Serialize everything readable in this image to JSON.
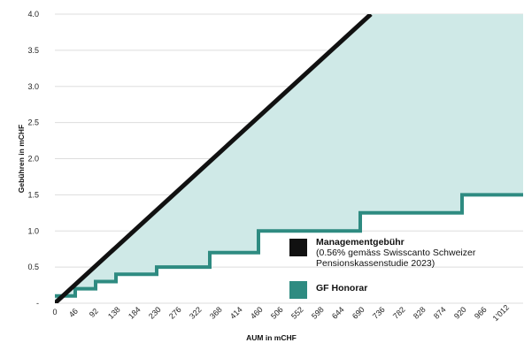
{
  "chart_data": {
    "type": "line",
    "ylabel": "Gebühren in mCHF",
    "xlabel": "AUM in mCHF",
    "xlim": [
      0,
      1058
    ],
    "ylim": [
      0,
      4.0
    ],
    "x_ticks": [
      "0",
      "46",
      "92",
      "138",
      "184",
      "230",
      "276",
      "322",
      "368",
      "414",
      "460",
      "506",
      "552",
      "598",
      "644",
      "690",
      "736",
      "782",
      "828",
      "874",
      "920",
      "966",
      "1'012"
    ],
    "y_ticks": [
      {
        "value": 0,
        "label": "-"
      },
      {
        "value": 0.5,
        "label": "0.5"
      },
      {
        "value": 1.0,
        "label": "1.0"
      },
      {
        "value": 1.5,
        "label": "1.5"
      },
      {
        "value": 2.0,
        "label": "2.0"
      },
      {
        "value": 2.5,
        "label": "2.5"
      },
      {
        "value": 3.0,
        "label": "3.0"
      },
      {
        "value": 3.5,
        "label": "3.5"
      },
      {
        "value": 4.0,
        "label": "4.0"
      }
    ],
    "grid": "horizontal",
    "legend_position": "bottom-right",
    "series": [
      {
        "name": "Managementgebühr",
        "note": "(0.56% gemäss Swisscanto Schweizer Pensionskassenstudie 2023)",
        "color": "#111111",
        "x": [
          0,
          714
        ],
        "y": [
          0,
          4.0
        ]
      },
      {
        "name": "GF Honorar",
        "color": "#2e8b81",
        "fill_between_color": "#cfe9e7",
        "step": true,
        "x": [
          0,
          46,
          46,
          92,
          92,
          138,
          138,
          230,
          230,
          350,
          350,
          460,
          460,
          690,
          690,
          920,
          920,
          1058
        ],
        "y": [
          0.1,
          0.1,
          0.2,
          0.2,
          0.3,
          0.3,
          0.4,
          0.4,
          0.5,
          0.5,
          0.7,
          0.7,
          1.0,
          1.0,
          1.25,
          1.25,
          1.5,
          1.5
        ]
      }
    ]
  },
  "legend": {
    "management_title": "Managementgebühr",
    "management_sub": "(0.56% gemäss Swisscanto Schweizer Pensionskassenstudie 2023)",
    "honorar_title": "GF Honorar"
  }
}
